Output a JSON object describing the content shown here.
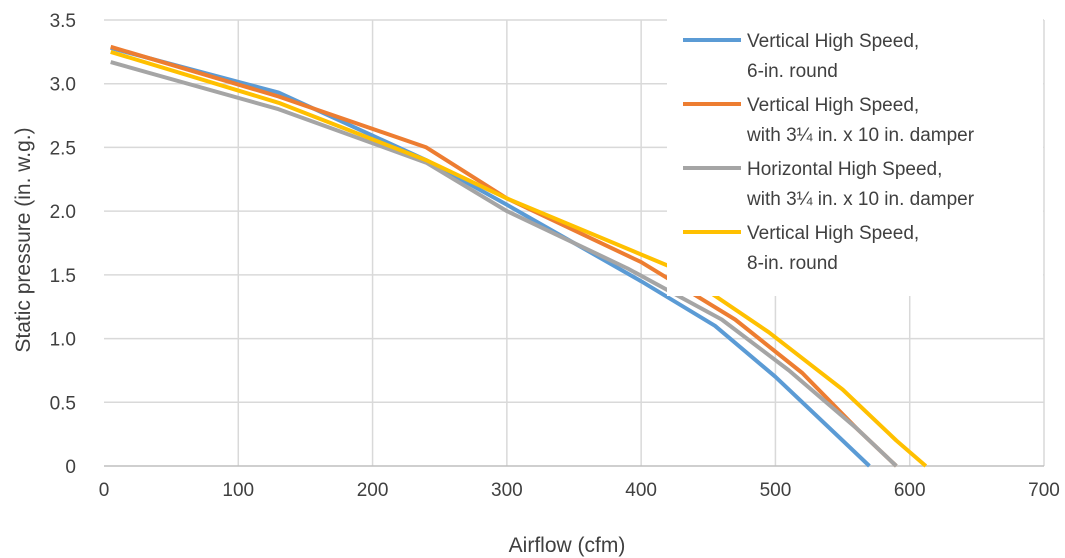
{
  "chart_data": {
    "type": "line",
    "title": "",
    "xlabel": "Airflow (cfm)",
    "ylabel": "Static pressure (in. w.g.)",
    "xlim": [
      0,
      700
    ],
    "ylim": [
      0,
      3.5
    ],
    "x_ticks": [
      0,
      100,
      200,
      300,
      400,
      500,
      600,
      700
    ],
    "y_ticks": [
      0,
      0.5,
      1.0,
      1.5,
      2.0,
      2.5,
      3.0,
      3.5
    ],
    "x_tick_labels": [
      "0",
      "100",
      "200",
      "300",
      "400",
      "500",
      "600",
      "700"
    ],
    "y_tick_labels": [
      "0",
      "0.5",
      "1.0",
      "1.5",
      "2.0",
      "2.5",
      "3.0",
      "3.5"
    ],
    "grid": true,
    "legend_position": "top-right",
    "series": [
      {
        "name": "Vertical High Speed, 6-in. round",
        "legend_lines": [
          "Vertical High Speed,",
          "6-in. round"
        ],
        "color": "#5B9BD5",
        "x": [
          5,
          130,
          240,
          300,
          400,
          455,
          500,
          550,
          570
        ],
        "y": [
          3.28,
          2.93,
          2.4,
          2.05,
          1.45,
          1.1,
          0.7,
          0.2,
          0.0
        ]
      },
      {
        "name": "Vertical High Speed, with 3¼ in. x 10 in. damper",
        "legend_lines": [
          "Vertical High Speed,",
          "with 3¼ in. x 10 in. damper"
        ],
        "color": "#ED7D31",
        "x": [
          5,
          130,
          240,
          300,
          400,
          470,
          520,
          560,
          590
        ],
        "y": [
          3.29,
          2.9,
          2.5,
          2.1,
          1.6,
          1.15,
          0.73,
          0.3,
          0.0
        ]
      },
      {
        "name": "Horizontal High Speed, with 3¼ in. x 10 in. damper",
        "legend_lines": [
          "Horizontal High Speed,",
          "with 3¼ in. x 10 in. damper"
        ],
        "color": "#A5A5A5",
        "x": [
          5,
          130,
          240,
          300,
          390,
          460,
          510,
          560,
          590
        ],
        "y": [
          3.17,
          2.8,
          2.38,
          2.0,
          1.55,
          1.15,
          0.75,
          0.3,
          0.0
        ]
      },
      {
        "name": "Vertical High Speed, 8-in. round",
        "legend_lines": [
          "Vertical High Speed,",
          "8-in. round"
        ],
        "color": "#FFC000",
        "x": [
          5,
          130,
          240,
          300,
          425,
          495,
          550,
          590,
          612
        ],
        "y": [
          3.25,
          2.85,
          2.4,
          2.1,
          1.55,
          1.05,
          0.6,
          0.2,
          0.0
        ]
      }
    ]
  }
}
